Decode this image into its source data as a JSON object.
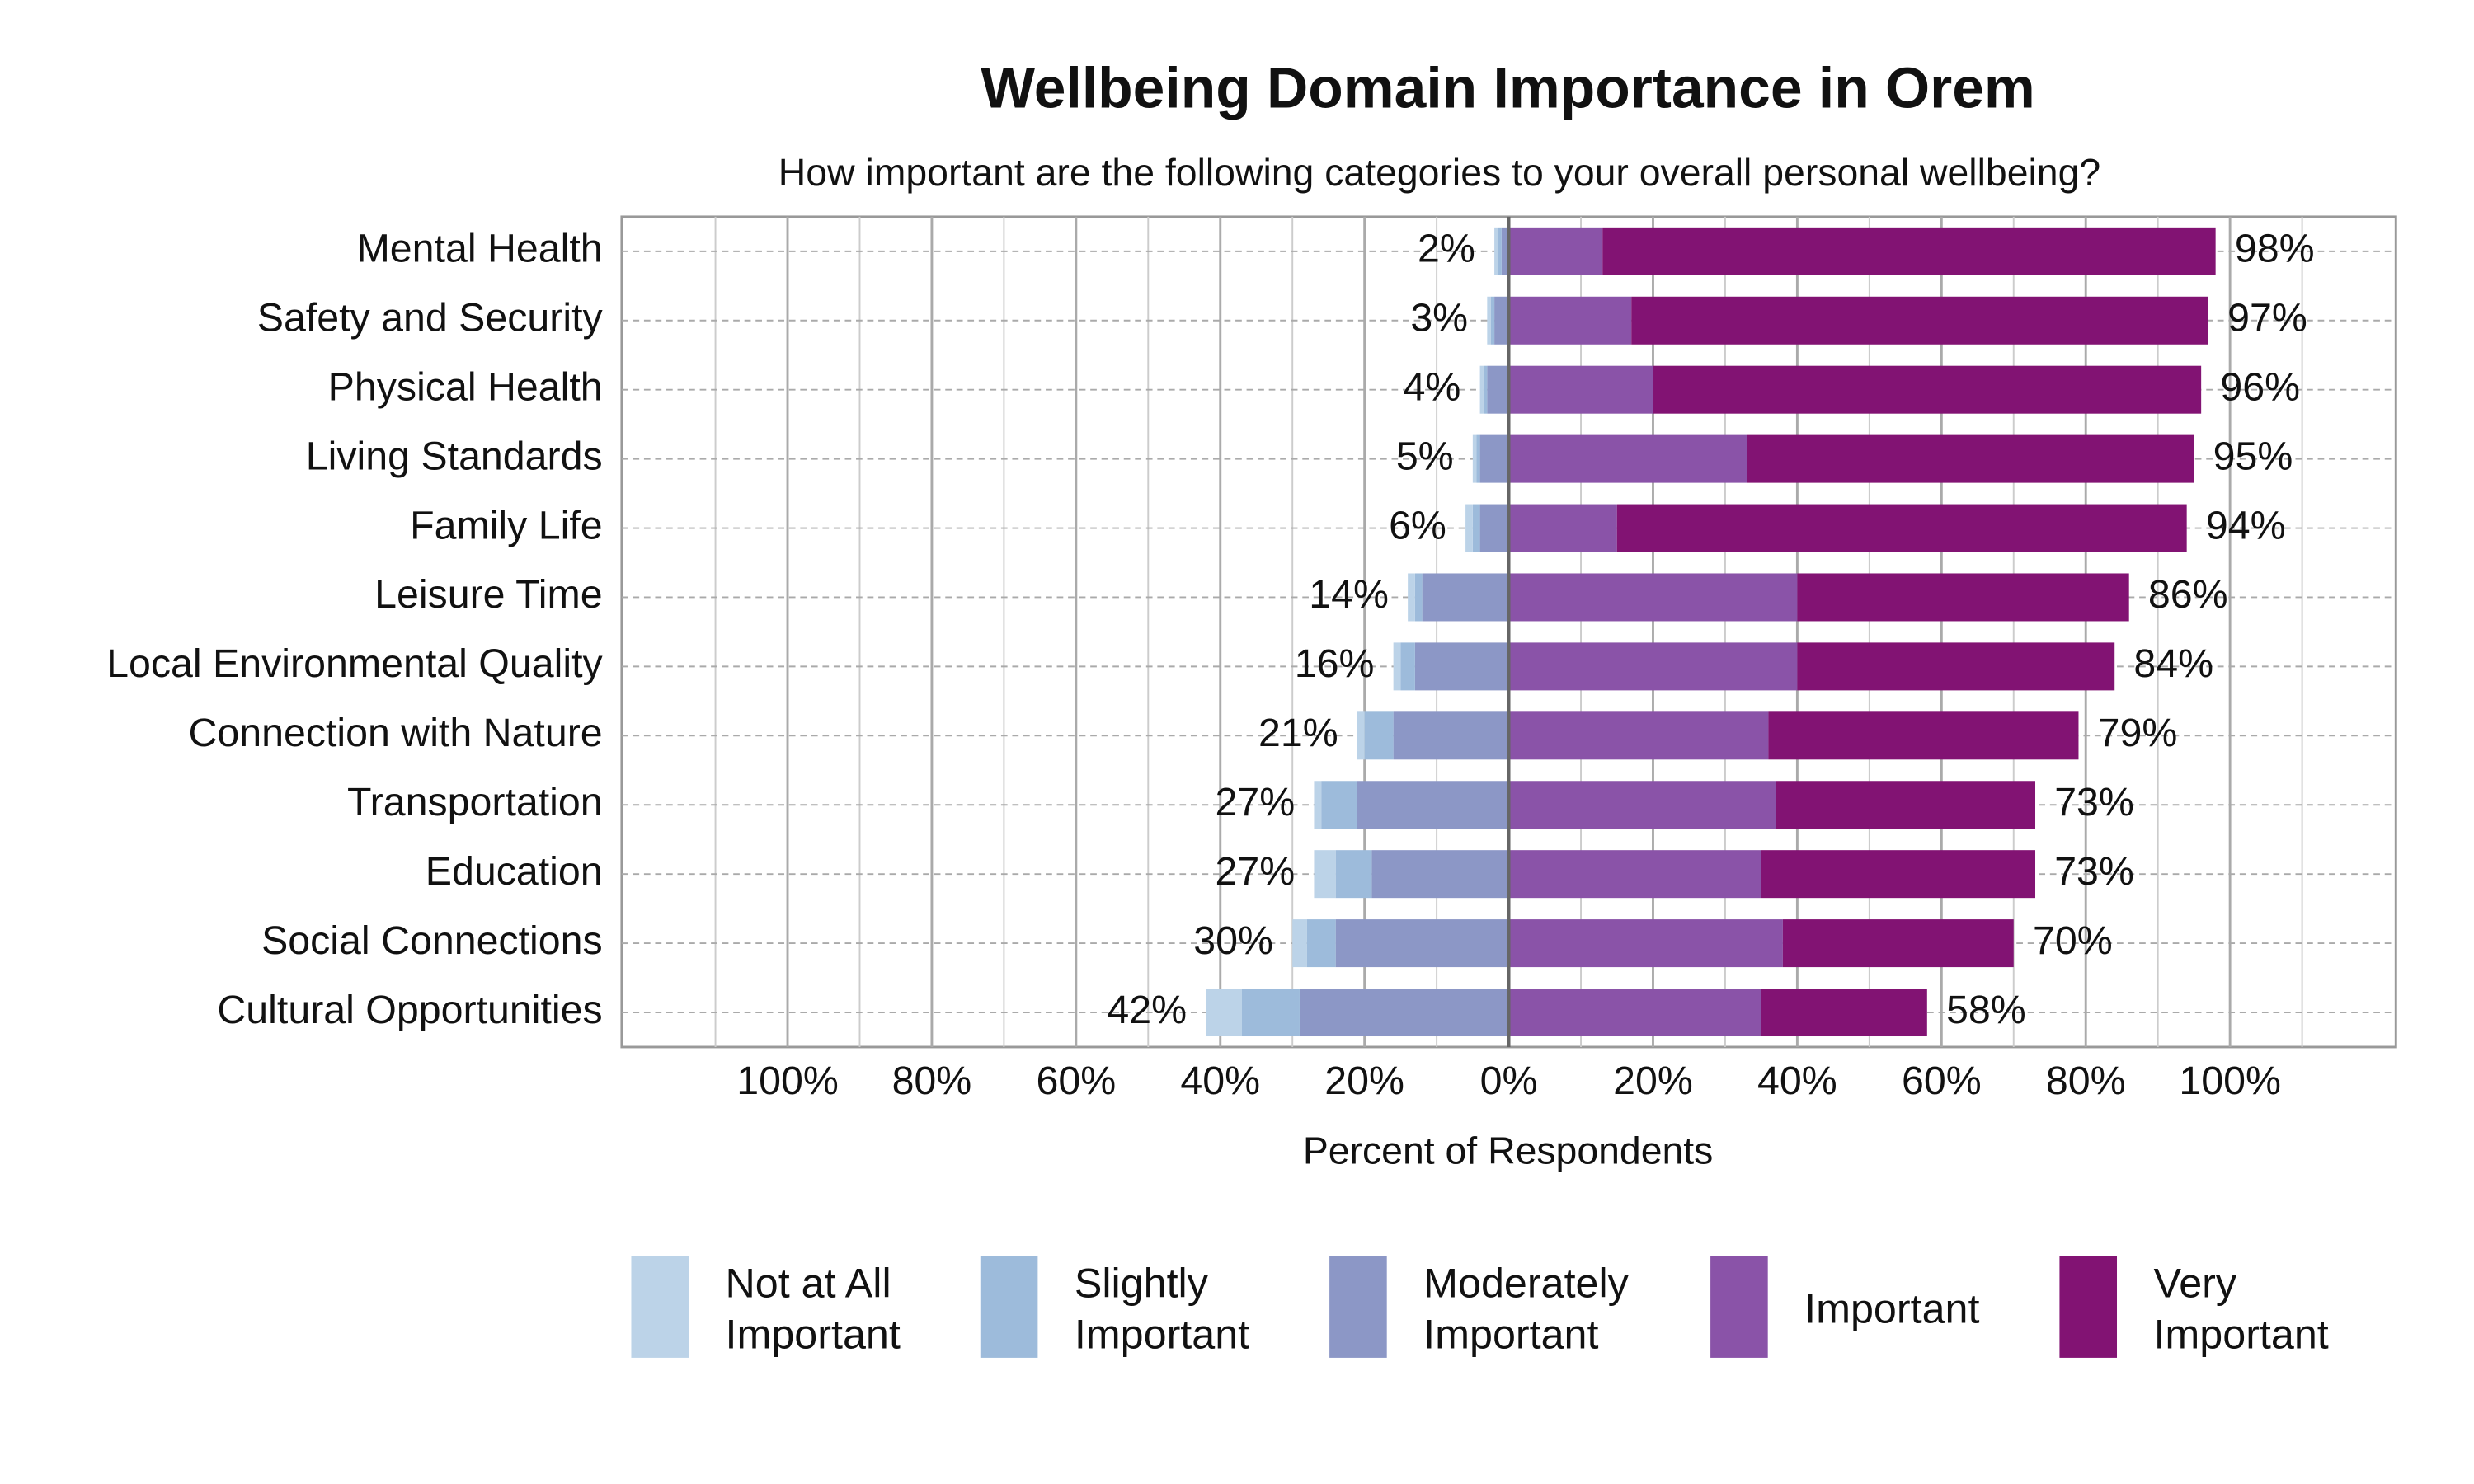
{
  "chart_data": {
    "type": "diverging-bar",
    "title": "Wellbeing Domain Importance in Orem",
    "subtitle": "How important are the following categories to your overall personal wellbeing?",
    "x_label": "Percent of Respondents",
    "categories": [
      "Mental Health",
      "Safety and Security",
      "Physical Health",
      "Living Standards",
      "Family Life",
      "Leisure Time",
      "Local Environmental Quality",
      "Connection with Nature",
      "Transportation",
      "Education",
      "Social Connections",
      "Cultural Opportunities"
    ],
    "series": [
      {
        "name": "Not at All Important",
        "color": "#bcd3e8",
        "side": "negative",
        "values": [
          0.5,
          0.5,
          0.5,
          0.5,
          1,
          1,
          1,
          1,
          1,
          3,
          2,
          5
        ]
      },
      {
        "name": "Slightly Important",
        "color": "#9dbbdb",
        "side": "negative",
        "values": [
          0.5,
          0.5,
          0.5,
          0.5,
          1,
          1,
          2,
          4,
          5,
          5,
          4,
          8
        ]
      },
      {
        "name": "Moderately Important",
        "color": "#8c97c6",
        "side": "negative",
        "values": [
          1,
          2,
          3,
          4,
          4,
          12,
          13,
          16,
          21,
          19,
          24,
          29
        ]
      },
      {
        "name": "Important",
        "color": "#8a53a8",
        "side": "positive",
        "values": [
          13,
          17,
          20,
          33,
          15,
          40,
          40,
          36,
          37,
          35,
          38,
          35
        ]
      },
      {
        "name": "Very Important",
        "color": "#821373",
        "side": "positive",
        "values": [
          85,
          80,
          76,
          62,
          79,
          46,
          44,
          43,
          36,
          38,
          32,
          23
        ]
      }
    ],
    "totals": {
      "negative": {
        "values": [
          2,
          3,
          4,
          5,
          6,
          14,
          16,
          21,
          27,
          27,
          30,
          42
        ],
        "value_labels": [
          "2%",
          "3%",
          "4%",
          "5%",
          "6%",
          "14%",
          "16%",
          "21%",
          "27%",
          "27%",
          "30%",
          "42%"
        ]
      },
      "positive": {
        "values": [
          98,
          97,
          96,
          95,
          94,
          86,
          84,
          79,
          73,
          73,
          70,
          58
        ],
        "value_labels": [
          "98%",
          "97%",
          "96%",
          "95%",
          "94%",
          "86%",
          "84%",
          "79%",
          "73%",
          "73%",
          "70%",
          "58%"
        ]
      }
    },
    "xlim": [
      -123,
      123
    ],
    "xticks": [
      {
        "value": -100,
        "label": "100%"
      },
      {
        "value": -80,
        "label": "80%"
      },
      {
        "value": -60,
        "label": "60%"
      },
      {
        "value": -40,
        "label": "40%"
      },
      {
        "value": -20,
        "label": "20%"
      },
      {
        "value": 0,
        "label": "0%"
      },
      {
        "value": 20,
        "label": "20%"
      },
      {
        "value": 40,
        "label": "40%"
      },
      {
        "value": 60,
        "label": "60%"
      },
      {
        "value": 80,
        "label": "80%"
      },
      {
        "value": 100,
        "label": "100%"
      }
    ],
    "minor_xticks": [
      -110,
      -90,
      -70,
      -50,
      -30,
      -10,
      10,
      30,
      50,
      70,
      90,
      110
    ],
    "grid": true,
    "legend": "bottom"
  }
}
